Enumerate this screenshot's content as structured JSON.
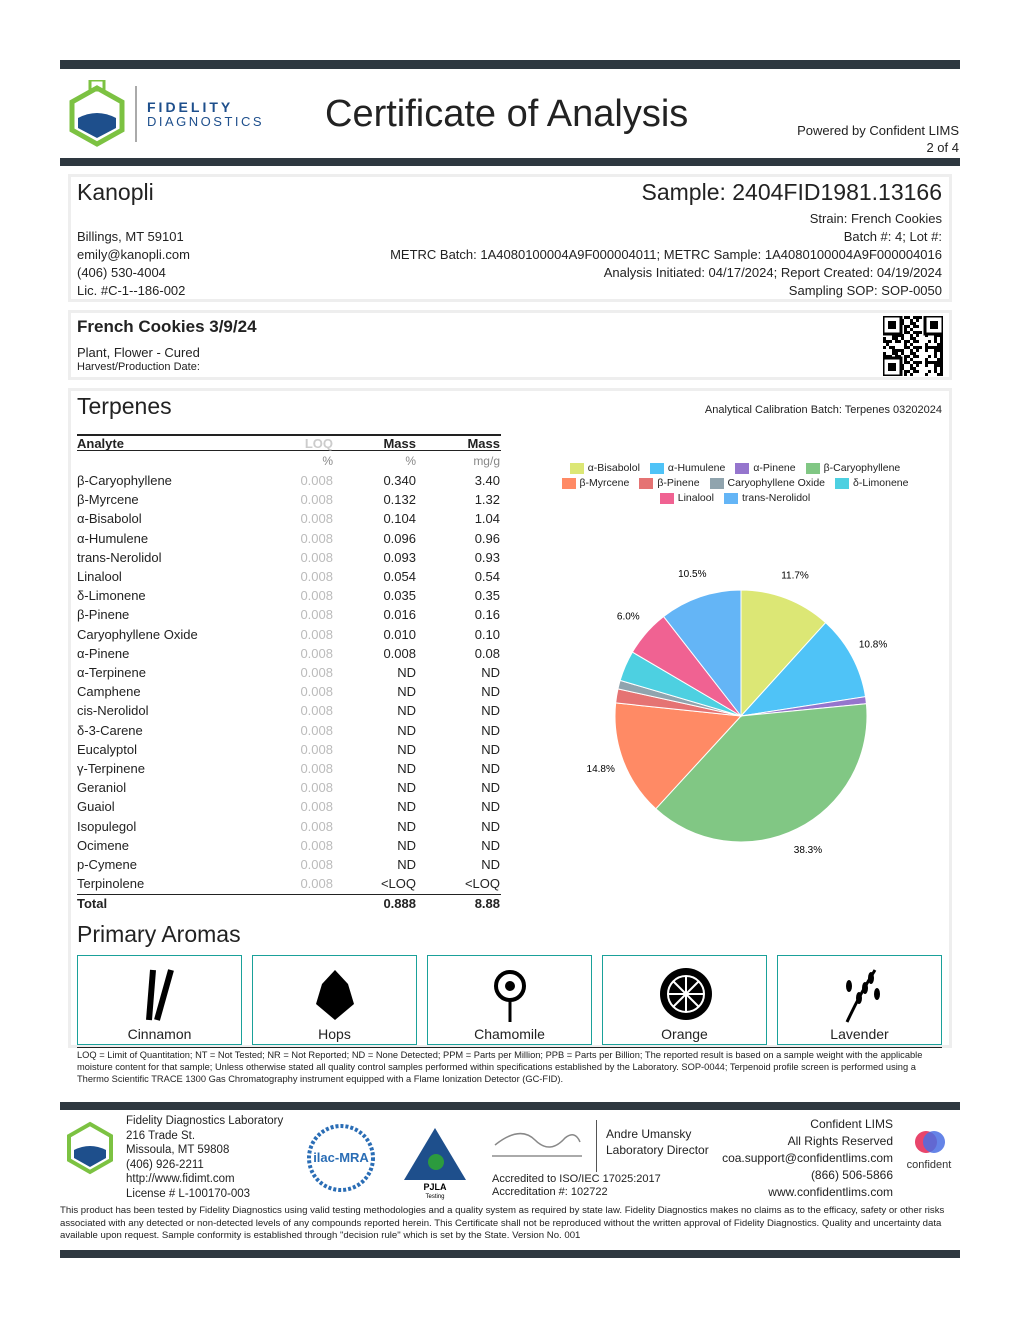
{
  "header": {
    "logo_line1": "FIDELITY",
    "logo_line2": "DIAGNOSTICS",
    "title": "Certificate of Analysis",
    "powered_by": "Powered by Confident LIMS",
    "page": "2 of 4"
  },
  "client": {
    "name": "Kanopli",
    "lines": [
      "Billings, MT 59101",
      "emily@kanopli.com",
      "(406) 530-4004",
      "Lic. #C-1--186-002"
    ]
  },
  "sample": {
    "id": "Sample: 2404FID1981.13166",
    "lines": [
      "Strain: French Cookies",
      "Batch #: 4; Lot #:",
      "METRC Batch: 1A4080100004A9F000004011; METRC Sample: 1A4080100004A9F000004016",
      "Analysis Initiated: 04/17/2024; Report Created: 04/19/2024",
      "Sampling SOP: SOP-0050"
    ]
  },
  "product": {
    "name": "French Cookies 3/9/24",
    "type": "Plant, Flower - Cured",
    "harvest": "Harvest/Production Date:"
  },
  "terpenes": {
    "title": "Terpenes",
    "calibration": "Analytical Calibration Batch: Terpenes 03202024",
    "columns": [
      "Analyte",
      "LOQ",
      "Mass",
      "Mass"
    ],
    "units": [
      "%",
      "%",
      "mg/g"
    ],
    "rows": [
      [
        "β-Caryophyllene",
        "0.008",
        "0.340",
        "3.40"
      ],
      [
        "β-Myrcene",
        "0.008",
        "0.132",
        "1.32"
      ],
      [
        "α-Bisabolol",
        "0.008",
        "0.104",
        "1.04"
      ],
      [
        "α-Humulene",
        "0.008",
        "0.096",
        "0.96"
      ],
      [
        "trans-Nerolidol",
        "0.008",
        "0.093",
        "0.93"
      ],
      [
        "Linalool",
        "0.008",
        "0.054",
        "0.54"
      ],
      [
        "δ-Limonene",
        "0.008",
        "0.035",
        "0.35"
      ],
      [
        "β-Pinene",
        "0.008",
        "0.016",
        "0.16"
      ],
      [
        "Caryophyllene Oxide",
        "0.008",
        "0.010",
        "0.10"
      ],
      [
        "α-Pinene",
        "0.008",
        "0.008",
        "0.08"
      ],
      [
        "α-Terpinene",
        "0.008",
        "ND",
        "ND"
      ],
      [
        "Camphene",
        "0.008",
        "ND",
        "ND"
      ],
      [
        "cis-Nerolidol",
        "0.008",
        "ND",
        "ND"
      ],
      [
        "δ-3-Carene",
        "0.008",
        "ND",
        "ND"
      ],
      [
        "Eucalyptol",
        "0.008",
        "ND",
        "ND"
      ],
      [
        "γ-Terpinene",
        "0.008",
        "ND",
        "ND"
      ],
      [
        "Geraniol",
        "0.008",
        "ND",
        "ND"
      ],
      [
        "Guaiol",
        "0.008",
        "ND",
        "ND"
      ],
      [
        "Isopulegol",
        "0.008",
        "ND",
        "ND"
      ],
      [
        "Ocimene",
        "0.008",
        "ND",
        "ND"
      ],
      [
        "p-Cymene",
        "0.008",
        "ND",
        "ND"
      ],
      [
        "Terpinolene",
        "0.008",
        "<LOQ",
        "<LOQ"
      ]
    ],
    "total": [
      "Total",
      "0.888",
      "8.88"
    ]
  },
  "chart_data": {
    "type": "pie",
    "categories": [
      "α-Bisabolol",
      "α-Humulene",
      "α-Pinene",
      "β-Caryophyllene",
      "β-Myrcene",
      "β-Pinene",
      "Caryophyllene Oxide",
      "δ-Limonene",
      "Linalool",
      "trans-Nerolidol"
    ],
    "values": [
      11.7,
      10.8,
      0.9,
      38.3,
      14.8,
      1.8,
      1.1,
      3.9,
      6.0,
      10.5
    ],
    "value_labels": [
      "11.7%",
      "10.8%",
      null,
      "38.3%",
      "14.8%",
      null,
      null,
      null,
      "6.0%",
      "10.5%"
    ],
    "colors": [
      "#dce775",
      "#4fc3f7",
      "#9575cd",
      "#81c784",
      "#ff8a65",
      "#e57373",
      "#90a4ae",
      "#4dd0e1",
      "#f06292",
      "#64b5f6"
    ],
    "legend": "top"
  },
  "aromas": {
    "title": "Primary Aromas",
    "items": [
      "Cinnamon",
      "Hops",
      "Chamomile",
      "Orange",
      "Lavender"
    ]
  },
  "notes": "LOQ = Limit of Quantitation; NT = Not Tested; NR = Not Reported; ND = None Detected; PPM = Parts per Million; PPB = Parts per Billion; The reported result is based on a sample weight with the applicable moisture content for that sample; Unless otherwise stated all quality control samples performed within specifications established by the Laboratory. SOP-0044; Terpenoid profile screen is performed using a Thermo Scientific TRACE 1300 Gas Chromatography instrument equipped with a Flame Ionization Detector (GC-FID).",
  "footer": {
    "lab": [
      "Fidelity Diagnostics Laboratory",
      "216 Trade St.",
      "Missoula, MT 59808",
      "(406) 926-2211",
      "http://www.fidimt.com",
      "License # L-100170-003"
    ],
    "ilac": "ilac-MRA",
    "pjla": "PJLA",
    "pjla_sub": "Testing",
    "director": [
      "Andre Umansky",
      "Laboratory Director"
    ],
    "accreditation": [
      "Accredited to ISO/IEC 17025:2017",
      "Accreditation #: 102722"
    ],
    "confident": [
      "Confident LIMS",
      "All Rights Reserved",
      "coa.support@confidentlims.com",
      "(866) 506-5866",
      "www.confidentlims.com"
    ],
    "confident_logo": "confident",
    "disclaimer": "This product has been tested by Fidelity Diagnostics using valid testing methodologies and a quality system as required by state law. Fidelity Diagnostics makes no claims as to the efficacy, safety or other risks associated with any detected or non-detected levels of any compounds reported herein. This Certificate shall not be reproduced without the written approval of Fidelity Diagnostics.  Quality and uncertainty data available upon request. Sample conformity is established through \"decision rule\" which is set by the State. Version No. 001"
  }
}
